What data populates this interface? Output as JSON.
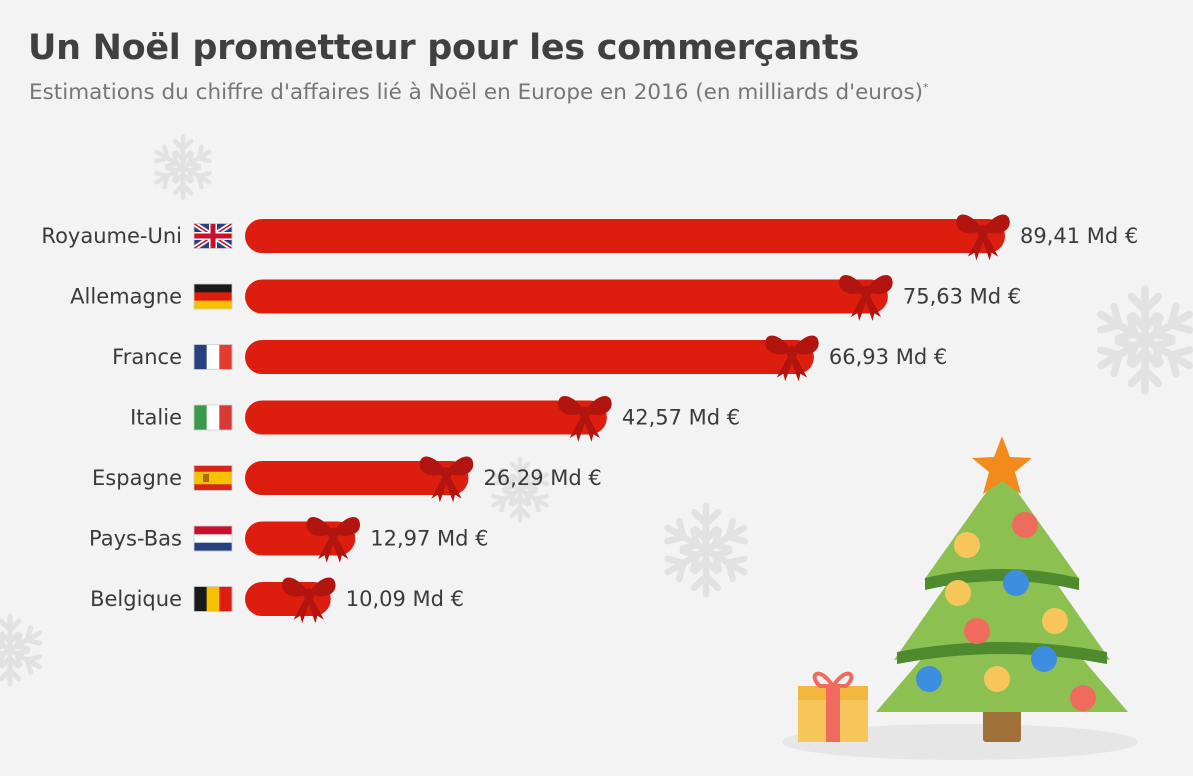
{
  "chart_data": {
    "type": "bar",
    "orientation": "horizontal",
    "title": "Un Noël prometteur pour les commerçants",
    "subtitle": "Estimations du chiffre d'affaires lié à Noël en Europe en 2016 (en milliards d'euros)",
    "subtitle_note": "*",
    "categories": [
      "Royaume-Uni",
      "Allemagne",
      "France",
      "Italie",
      "Espagne",
      "Pays-Bas",
      "Belgique"
    ],
    "values": [
      89.41,
      75.63,
      66.93,
      42.57,
      26.29,
      12.97,
      10.09
    ],
    "value_labels": [
      "89,41 Md €",
      "75,63 Md €",
      "66,93 Md €",
      "42,57 Md €",
      "26,29 Md €",
      "12,97 Md €",
      "10,09 Md €"
    ],
    "flags": [
      "uk-flag-icon",
      "germany-flag-icon",
      "france-flag-icon",
      "italy-flag-icon",
      "spain-flag-icon",
      "netherlands-flag-icon",
      "belgium-flag-icon"
    ],
    "xlim": [
      0,
      89.41
    ],
    "bar_color": "#dd1d0d",
    "bow_color": "#b2140f",
    "grid": false,
    "legend": "none"
  }
}
